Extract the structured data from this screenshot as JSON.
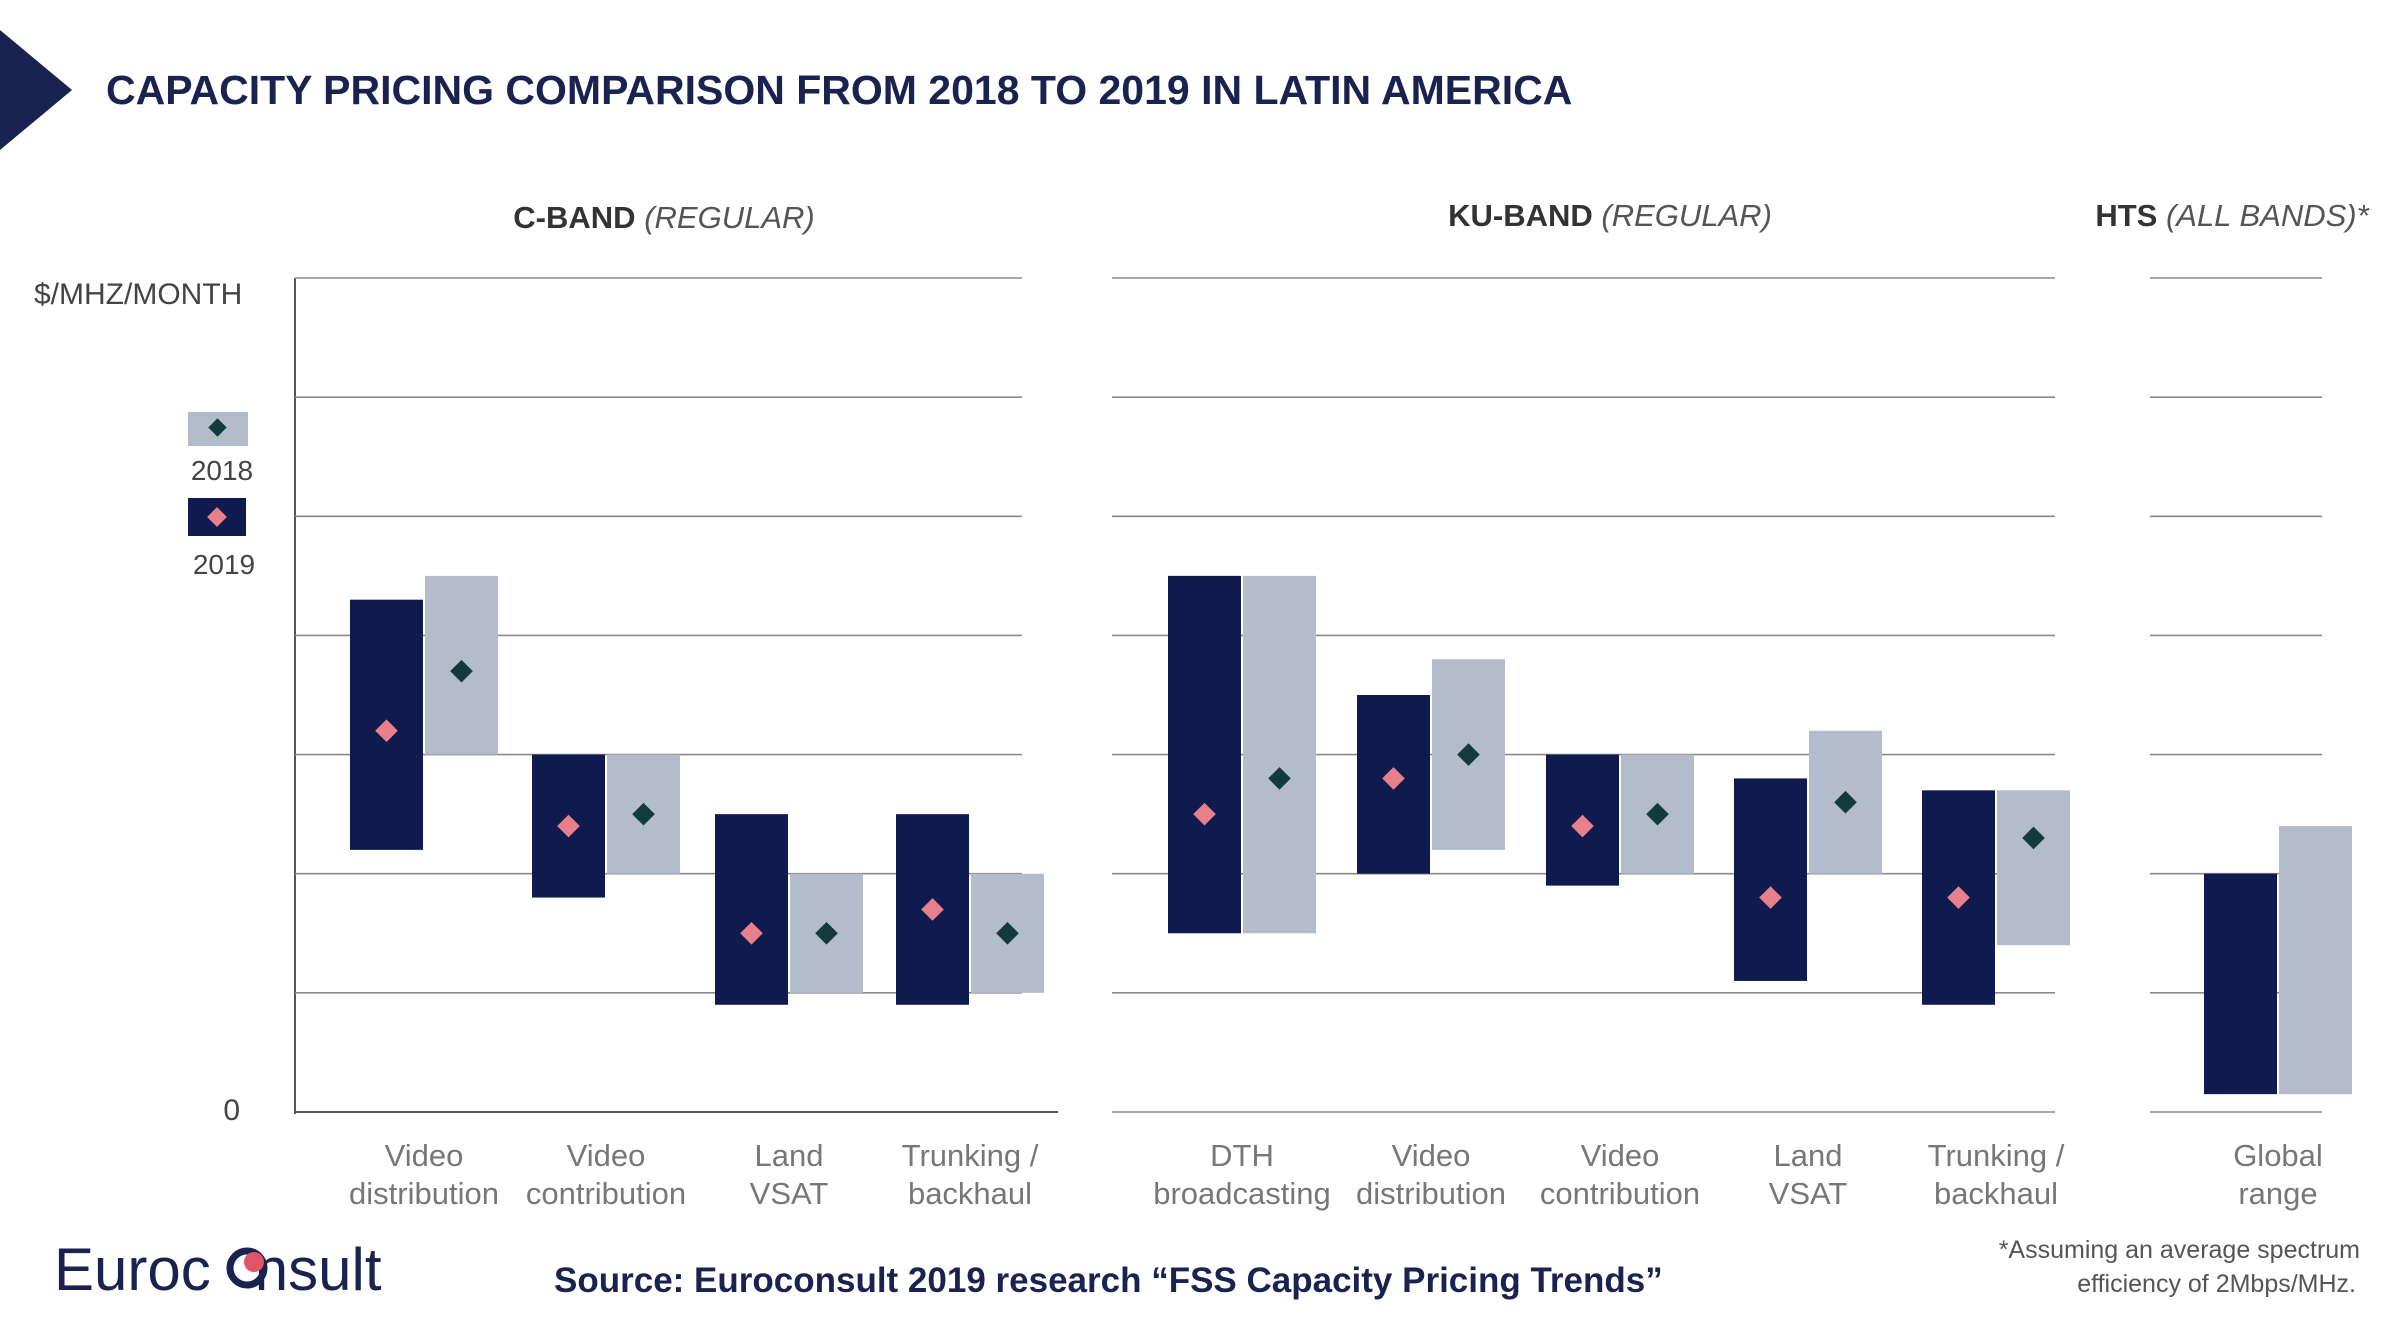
{
  "title": "CAPACITY PRICING COMPARISON FROM 2018 TO 2019 IN LATIN AMERICA",
  "colors": {
    "y2019": "#0f1a4e",
    "y2018": "#b3bccb",
    "marker2019": "#e8808c",
    "marker2018": "#133b3c",
    "accent": "#1a2350",
    "logo_dot": "#e0556a"
  },
  "sections": [
    {
      "bold": "C-BAND",
      "italic": "(REGULAR)"
    },
    {
      "bold": "KU-BAND",
      "italic": "(REGULAR)"
    },
    {
      "bold": "HTS",
      "italic": "(ALL BANDS)*"
    }
  ],
  "axis": {
    "unit": "$/MHZ/MONTH",
    "zero": "0"
  },
  "legend": [
    {
      "label": "2018"
    },
    {
      "label": "2019"
    }
  ],
  "chart_data": {
    "type": "range-bar",
    "y_axis": {
      "label": "$/MHZ/MONTH",
      "tick_labels": [
        "0"
      ],
      "ylim": [
        0,
        7
      ],
      "gridlines": 7,
      "grid": true
    },
    "legend": [
      "2018",
      "2019"
    ],
    "legend_placement": "left",
    "groups": [
      {
        "name": "C-BAND (REGULAR)",
        "categories": [
          {
            "label": [
              "Video",
              "distribution"
            ],
            "y2019": {
              "min": 2.2,
              "max": 4.3,
              "avg": 3.2
            },
            "y2018": {
              "min": 3.0,
              "max": 4.5,
              "avg": 3.7
            }
          },
          {
            "label": [
              "Video",
              "contribution"
            ],
            "y2019": {
              "min": 1.8,
              "max": 3.0,
              "avg": 2.4
            },
            "y2018": {
              "min": 2.0,
              "max": 3.0,
              "avg": 2.5
            }
          },
          {
            "label": [
              "Land",
              "VSAT"
            ],
            "y2019": {
              "min": 0.9,
              "max": 2.5,
              "avg": 1.5
            },
            "y2018": {
              "min": 1.0,
              "max": 2.0,
              "avg": 1.5
            }
          },
          {
            "label": [
              "Trunking /",
              "backhaul"
            ],
            "y2019": {
              "min": 0.9,
              "max": 2.5,
              "avg": 1.7
            },
            "y2018": {
              "min": 1.0,
              "max": 2.0,
              "avg": 1.5
            }
          }
        ]
      },
      {
        "name": "KU-BAND (REGULAR)",
        "categories": [
          {
            "label": [
              "DTH",
              "broadcasting"
            ],
            "y2019": {
              "min": 1.5,
              "max": 4.5,
              "avg": 2.5
            },
            "y2018": {
              "min": 1.5,
              "max": 4.5,
              "avg": 2.8
            }
          },
          {
            "label": [
              "Video",
              "distribution"
            ],
            "y2019": {
              "min": 2.0,
              "max": 3.5,
              "avg": 2.8
            },
            "y2018": {
              "min": 2.2,
              "max": 3.8,
              "avg": 3.0
            }
          },
          {
            "label": [
              "Video",
              "contribution"
            ],
            "y2019": {
              "min": 1.9,
              "max": 3.0,
              "avg": 2.4
            },
            "y2018": {
              "min": 2.0,
              "max": 3.0,
              "avg": 2.5
            }
          },
          {
            "label": [
              "Land",
              "VSAT"
            ],
            "y2019": {
              "min": 1.1,
              "max": 2.8,
              "avg": 1.8
            },
            "y2018": {
              "min": 2.0,
              "max": 3.2,
              "avg": 2.6
            }
          },
          {
            "label": [
              "Trunking /",
              "backhaul"
            ],
            "y2019": {
              "min": 0.9,
              "max": 2.7,
              "avg": 1.8
            },
            "y2018": {
              "min": 1.4,
              "max": 2.7,
              "avg": 2.3
            }
          }
        ]
      },
      {
        "name": "HTS (ALL BANDS)*",
        "categories": [
          {
            "label": [
              "Global",
              "range"
            ],
            "y2019": {
              "min": 0.15,
              "max": 2.0
            },
            "y2018": {
              "min": 0.15,
              "max": 2.4
            }
          }
        ]
      }
    ]
  },
  "footer": {
    "logo_left": "Euroc",
    "logo_right": "nsult",
    "source": "Source: Euroconsult 2019 research “FSS Capacity Pricing Trends”",
    "note_line1": "*Assuming an average spectrum",
    "note_line2": "efficiency of 2Mbps/MHz."
  }
}
